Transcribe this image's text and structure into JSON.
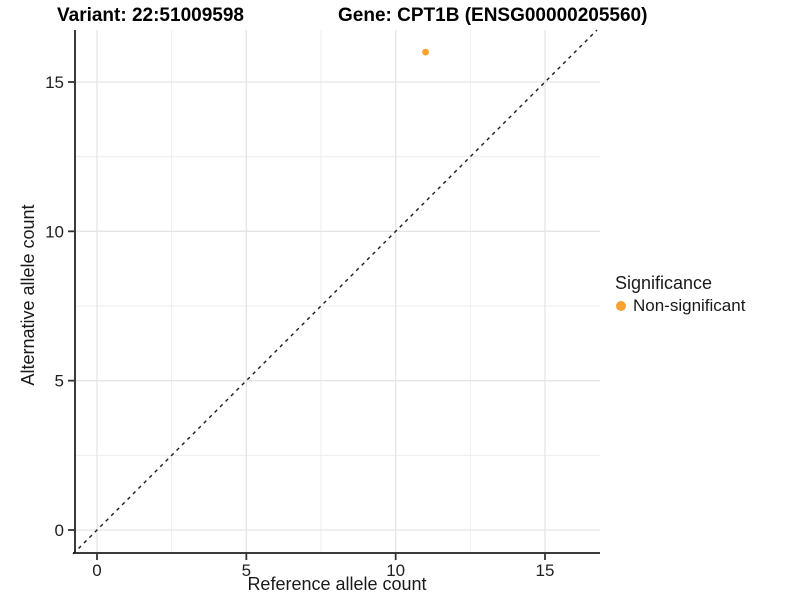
{
  "chart_data": {
    "type": "scatter",
    "title_left": "Variant: 22:51009598",
    "title_right": "Gene: CPT1B (ENSG00000205560)",
    "xlabel": "Reference allele count",
    "ylabel": "Alternative allele count",
    "xlim": [
      -0.8,
      16.8
    ],
    "ylim": [
      -0.8,
      16.8
    ],
    "x_ticks": [
      0,
      5,
      10,
      15
    ],
    "y_ticks": [
      0,
      5,
      10,
      15
    ],
    "x_minor_ticks": [
      2.5,
      7.5,
      12.5
    ],
    "y_minor_ticks": [
      2.5,
      7.5,
      12.5
    ],
    "grid": true,
    "points": [
      {
        "x": 11,
        "y": 16,
        "series": "Non-significant"
      }
    ],
    "identity_line": {
      "style": "dashed",
      "from": [
        -0.8,
        -0.8
      ],
      "to": [
        16.74,
        16.74
      ]
    },
    "legend": {
      "title": "Significance",
      "position": "right",
      "entries": [
        {
          "label": "Non-significant",
          "color": "#F9A232"
        }
      ]
    },
    "colors": {
      "point": "#F9A232",
      "grid_major": "#E5E5E5",
      "grid_minor": "#ECECEC",
      "axis_line": "#3A3A3A",
      "tick": "#333333",
      "reference_line": "#1A1A1A"
    }
  }
}
